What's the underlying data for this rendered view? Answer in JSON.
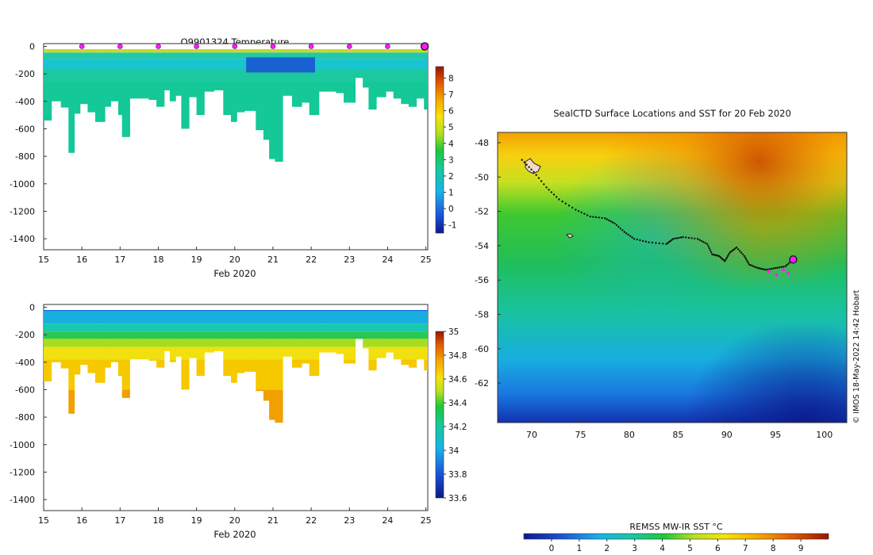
{
  "chart_data": [
    {
      "type": "heatmap",
      "title": "Q9901324  Temperature",
      "xlabel": "Feb 2020",
      "ylabel": "",
      "xlim": [
        15,
        25.05
      ],
      "ylim": [
        -1480,
        20
      ],
      "x_ticks": [
        "15",
        "16",
        "17",
        "18",
        "19",
        "20",
        "21",
        "22",
        "23",
        "24",
        "25"
      ],
      "y_ticks": [
        "0",
        "-200",
        "-400",
        "-600",
        "-800",
        "-1000",
        "-1200",
        "-1400"
      ],
      "colorbar": {
        "min": -1.5,
        "max": 8.7,
        "ticks": [
          "-1",
          "0",
          "1",
          "2",
          "3",
          "4",
          "5",
          "6",
          "7",
          "8"
        ]
      },
      "surface_markers_day": [
        16,
        17,
        18,
        19,
        20,
        21,
        22,
        23,
        24
      ],
      "profiles": [
        {
          "day": 15.0,
          "max_depth": 540
        },
        {
          "day": 15.2,
          "max_depth": 400
        },
        {
          "day": 15.45,
          "max_depth": 445
        },
        {
          "day": 15.65,
          "max_depth": 775
        },
        {
          "day": 15.8,
          "max_depth": 490
        },
        {
          "day": 15.95,
          "max_depth": 420
        },
        {
          "day": 16.15,
          "max_depth": 480
        },
        {
          "day": 16.35,
          "max_depth": 550
        },
        {
          "day": 16.6,
          "max_depth": 440
        },
        {
          "day": 16.75,
          "max_depth": 400
        },
        {
          "day": 16.95,
          "max_depth": 500
        },
        {
          "day": 17.05,
          "max_depth": 660
        },
        {
          "day": 17.25,
          "max_depth": 380
        },
        {
          "day": 17.5,
          "max_depth": 380
        },
        {
          "day": 17.75,
          "max_depth": 390
        },
        {
          "day": 17.95,
          "max_depth": 440
        },
        {
          "day": 18.15,
          "max_depth": 320
        },
        {
          "day": 18.3,
          "max_depth": 400
        },
        {
          "day": 18.45,
          "max_depth": 360
        },
        {
          "day": 18.6,
          "max_depth": 600
        },
        {
          "day": 18.8,
          "max_depth": 370
        },
        {
          "day": 19.0,
          "max_depth": 500
        },
        {
          "day": 19.2,
          "max_depth": 330
        },
        {
          "day": 19.45,
          "max_depth": 320
        },
        {
          "day": 19.7,
          "max_depth": 500
        },
        {
          "day": 19.9,
          "max_depth": 550
        },
        {
          "day": 20.05,
          "max_depth": 480
        },
        {
          "day": 20.25,
          "max_depth": 470
        },
        {
          "day": 20.55,
          "max_depth": 610
        },
        {
          "day": 20.75,
          "max_depth": 680
        },
        {
          "day": 20.9,
          "max_depth": 820
        },
        {
          "day": 21.05,
          "max_depth": 840
        },
        {
          "day": 21.25,
          "max_depth": 360
        },
        {
          "day": 21.5,
          "max_depth": 440
        },
        {
          "day": 21.75,
          "max_depth": 410
        },
        {
          "day": 21.95,
          "max_depth": 500
        },
        {
          "day": 22.2,
          "max_depth": 330
        },
        {
          "day": 22.45,
          "max_depth": 330
        },
        {
          "day": 22.65,
          "max_depth": 340
        },
        {
          "day": 22.85,
          "max_depth": 410
        },
        {
          "day": 23.15,
          "max_depth": 230
        },
        {
          "day": 23.35,
          "max_depth": 300
        },
        {
          "day": 23.5,
          "max_depth": 460
        },
        {
          "day": 23.7,
          "max_depth": 370
        },
        {
          "day": 23.95,
          "max_depth": 330
        },
        {
          "day": 24.15,
          "max_depth": 380
        },
        {
          "day": 24.35,
          "max_depth": 420
        },
        {
          "day": 24.55,
          "max_depth": 440
        },
        {
          "day": 24.75,
          "max_depth": 380
        },
        {
          "day": 24.95,
          "max_depth": 460
        }
      ]
    },
    {
      "type": "heatmap",
      "title": "",
      "xlabel": "Feb 2020",
      "ylabel": "",
      "xlim": [
        15,
        25.05
      ],
      "ylim": [
        -1480,
        20
      ],
      "x_ticks": [
        "15",
        "16",
        "17",
        "18",
        "19",
        "20",
        "21",
        "22",
        "23",
        "24",
        "25"
      ],
      "y_ticks": [
        "0",
        "-200",
        "-400",
        "-600",
        "-800",
        "-1000",
        "-1200",
        "-1400"
      ],
      "colorbar": {
        "min": 33.6,
        "max": 35.0,
        "ticks": [
          "33.6",
          "33.8",
          "34",
          "34.2",
          "34.4",
          "34.6",
          "34.8",
          "35"
        ]
      },
      "variable": "salinity"
    },
    {
      "type": "heatmap",
      "title": "SealCTD Surface Locations and SST for 20 Feb 2020",
      "xlabel": "",
      "ylabel": "",
      "xlim": [
        66.5,
        102.3
      ],
      "ylim": [
        -64.3,
        -47.4
      ],
      "x_ticks": [
        "70",
        "75",
        "80",
        "85",
        "90",
        "95",
        "100"
      ],
      "y_ticks": [
        "-48",
        "-50",
        "-52",
        "-54",
        "-56",
        "-58",
        "-60",
        "-62"
      ],
      "colorbar": {
        "label": "REMSS MW-IR SST °C",
        "min": -1,
        "max": 10,
        "ticks": [
          "0",
          "1",
          "2",
          "3",
          "4",
          "5",
          "6",
          "7",
          "8",
          "9"
        ]
      },
      "track": [
        {
          "lon": 69.0,
          "lat": -49.0
        },
        {
          "lon": 70.2,
          "lat": -49.7
        },
        {
          "lon": 71.5,
          "lat": -50.6
        },
        {
          "lon": 72.8,
          "lat": -51.3
        },
        {
          "lon": 74.5,
          "lat": -51.9
        },
        {
          "lon": 76.0,
          "lat": -52.3
        },
        {
          "lon": 77.5,
          "lat": -52.4
        },
        {
          "lon": 78.5,
          "lat": -52.7
        },
        {
          "lon": 79.5,
          "lat": -53.2
        },
        {
          "lon": 80.5,
          "lat": -53.6
        },
        {
          "lon": 82.0,
          "lat": -53.8
        },
        {
          "lon": 83.8,
          "lat": -53.9
        },
        {
          "lon": 84.5,
          "lat": -53.6
        },
        {
          "lon": 85.5,
          "lat": -53.5
        },
        {
          "lon": 87.0,
          "lat": -53.6
        },
        {
          "lon": 88.0,
          "lat": -53.9
        },
        {
          "lon": 88.5,
          "lat": -54.5
        },
        {
          "lon": 89.2,
          "lat": -54.6
        },
        {
          "lon": 89.8,
          "lat": -54.9
        },
        {
          "lon": 90.3,
          "lat": -54.4
        },
        {
          "lon": 91.0,
          "lat": -54.1
        },
        {
          "lon": 91.8,
          "lat": -54.6
        },
        {
          "lon": 92.3,
          "lat": -55.1
        },
        {
          "lon": 93.2,
          "lat": -55.3
        },
        {
          "lon": 94.0,
          "lat": -55.4
        },
        {
          "lon": 95.0,
          "lat": -55.3
        },
        {
          "lon": 96.0,
          "lat": -55.2
        },
        {
          "lon": 96.8,
          "lat": -54.8
        }
      ],
      "current_location": {
        "lon": 96.8,
        "lat": -54.8
      }
    }
  ],
  "credit": "© IMOS 18-May-2022 14:42 Hobart"
}
